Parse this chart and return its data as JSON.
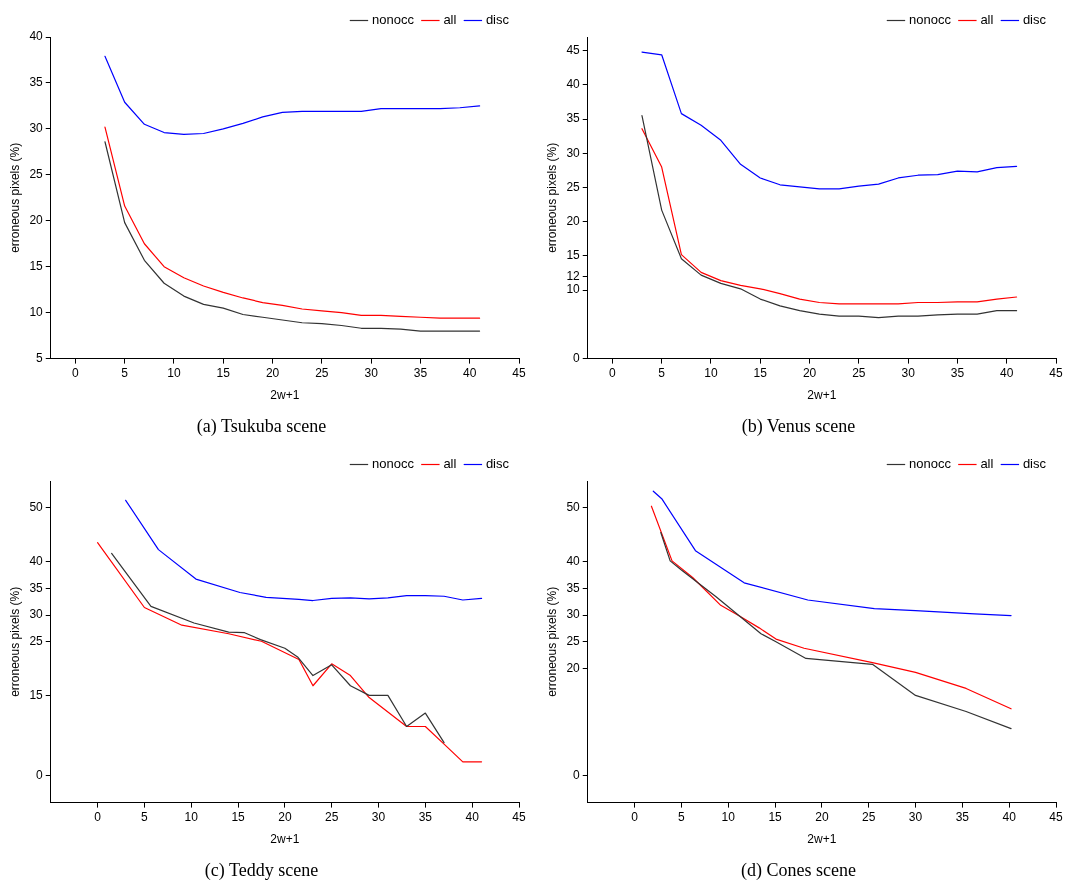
{
  "chart_data": [
    {
      "type": "line",
      "title": "(a) Tsukuba scene",
      "xlabel": "2w+1",
      "ylabel": "erroneous pixels (%)",
      "xlim": [
        -2.5,
        45
      ],
      "xticks": [
        0,
        5,
        10,
        15,
        20,
        25,
        30,
        35,
        40,
        45
      ],
      "ylim": [
        5,
        40
      ],
      "yticks": [
        5,
        10,
        15,
        20,
        25,
        30,
        35,
        40
      ],
      "legend": "top right",
      "grid": false,
      "marker": "none",
      "line_style": "solid",
      "series": [
        {
          "name": "nonocc",
          "color": "#333333",
          "x": [
            3,
            5,
            7,
            9,
            11,
            13,
            15,
            17,
            19,
            21,
            23,
            25,
            27,
            29,
            31,
            33,
            35,
            37,
            39,
            41
          ],
          "values": [
            28.6,
            19.8,
            15.7,
            13.2,
            11.8,
            10.9,
            10.5,
            9.8,
            9.5,
            9.2,
            8.9,
            8.8,
            8.6,
            8.3,
            8.3,
            8.2,
            8.0,
            8.0,
            8.0,
            8.0
          ]
        },
        {
          "name": "all",
          "color": "#ff0000",
          "x": [
            3,
            5,
            7,
            9,
            11,
            13,
            15,
            17,
            19,
            21,
            23,
            25,
            27,
            29,
            31,
            33,
            35,
            37,
            39,
            41
          ],
          "values": [
            30.2,
            21.6,
            17.5,
            15.0,
            13.8,
            12.9,
            12.2,
            11.6,
            11.1,
            10.8,
            10.4,
            10.2,
            10.0,
            9.7,
            9.7,
            9.6,
            9.5,
            9.4,
            9.4,
            9.4
          ]
        },
        {
          "name": "disc",
          "color": "#0000ff",
          "x": [
            3,
            5,
            7,
            9,
            11,
            13,
            15,
            17,
            19,
            21,
            23,
            25,
            27,
            29,
            31,
            33,
            35,
            37,
            39,
            41
          ],
          "values": [
            37.9,
            32.9,
            30.5,
            29.6,
            29.4,
            29.5,
            30.0,
            30.6,
            31.3,
            31.8,
            31.9,
            31.9,
            31.9,
            31.9,
            32.2,
            32.2,
            32.2,
            32.2,
            32.3,
            32.5
          ]
        }
      ]
    },
    {
      "type": "line",
      "title": "(b) Venus scene",
      "xlabel": "2w+1",
      "ylabel": "erroneous pixels (%)",
      "xlim": [
        -2.5,
        45
      ],
      "xticks": [
        0,
        5,
        10,
        15,
        20,
        25,
        30,
        35,
        40,
        45
      ],
      "ylim": [
        0,
        47
      ],
      "yticks": [
        0,
        10,
        12,
        15,
        20,
        25,
        30,
        35,
        40,
        45
      ],
      "legend": "top right",
      "grid": false,
      "marker": "none",
      "line_style": "solid",
      "series": [
        {
          "name": "nonocc",
          "color": "#333333",
          "x": [
            3,
            5,
            7,
            9,
            11,
            13,
            15,
            17,
            19,
            21,
            23,
            25,
            27,
            29,
            31,
            33,
            35,
            37,
            39,
            41
          ],
          "values": [
            35.5,
            21.7,
            14.6,
            12.2,
            11.0,
            10.2,
            8.7,
            7.7,
            7.0,
            6.5,
            6.2,
            6.2,
            6.0,
            6.2,
            6.2,
            6.4,
            6.5,
            6.5,
            7.0,
            7.0
          ]
        },
        {
          "name": "all",
          "color": "#ff0000",
          "x": [
            3,
            5,
            7,
            9,
            11,
            13,
            15,
            17,
            19,
            21,
            23,
            25,
            27,
            29,
            31,
            33,
            35,
            37,
            39,
            41
          ],
          "values": [
            33.6,
            28.0,
            15.2,
            12.6,
            11.4,
            10.7,
            10.2,
            9.5,
            8.7,
            8.2,
            8.0,
            8.0,
            8.0,
            8.0,
            8.2,
            8.2,
            8.3,
            8.3,
            8.7,
            9.0
          ]
        },
        {
          "name": "disc",
          "color": "#0000ff",
          "x": [
            3,
            5,
            7,
            9,
            11,
            13,
            15,
            17,
            19,
            21,
            23,
            25,
            27,
            29,
            31,
            33,
            35,
            37,
            39,
            41
          ],
          "values": [
            44.8,
            44.4,
            35.8,
            34.1,
            31.9,
            28.4,
            26.4,
            25.4,
            25.1,
            24.8,
            24.8,
            25.2,
            25.5,
            26.4,
            26.8,
            26.9,
            27.4,
            27.3,
            27.9,
            28.1
          ]
        }
      ]
    },
    {
      "type": "line",
      "title": "(c) Teddy scene",
      "xlabel": "2w+1",
      "ylabel": "erroneous pixels (%)",
      "xlim": [
        -5,
        45
      ],
      "xticks": [
        0,
        5,
        10,
        15,
        20,
        25,
        30,
        35,
        40,
        45
      ],
      "ylim": [
        -5,
        55
      ],
      "yticks": [
        0,
        15,
        25,
        30,
        35,
        40,
        50
      ],
      "legend": "top right",
      "grid": false,
      "marker": "none",
      "line_style": "solid",
      "series": [
        {
          "name": "nonocc",
          "color": "#333333",
          "x": [
            1.5,
            5.7,
            10.3,
            14,
            15.7,
            17.4,
            20,
            21.4,
            23,
            25,
            27,
            29,
            31,
            33,
            35,
            37
          ],
          "values": [
            41.5,
            31.6,
            28.5,
            26.8,
            26.7,
            25.4,
            23.8,
            22.1,
            18.7,
            20.7,
            16.8,
            15,
            15,
            9.2,
            11.7,
            6.2
          ]
        },
        {
          "name": "all",
          "color": "#ff0000",
          "x": [
            0,
            5,
            9,
            14,
            17.5,
            21.5,
            23,
            25,
            27,
            29,
            33,
            35,
            37,
            39,
            41
          ],
          "values": [
            43.5,
            31.4,
            28.1,
            26.5,
            25.1,
            21.7,
            16.8,
            20.9,
            18.7,
            14.6,
            9.2,
            9.2,
            5.9,
            2.6,
            2.6
          ]
        },
        {
          "name": "disc",
          "color": "#0000ff",
          "x": [
            3,
            6.5,
            10.5,
            15.2,
            18,
            21.5,
            23,
            25,
            27,
            29,
            31,
            33,
            35,
            37,
            39,
            41
          ],
          "values": [
            51.4,
            42.2,
            36.7,
            34.2,
            33.3,
            32.9,
            32.7,
            33.1,
            33.2,
            33.0,
            33.2,
            33.6,
            33.6,
            33.5,
            32.8,
            33.1
          ]
        }
      ]
    },
    {
      "type": "line",
      "title": "(d) Cones scene",
      "xlabel": "2w+1",
      "ylabel": "erroneous pixels (%)",
      "xlim": [
        -5,
        45
      ],
      "xticks": [
        0,
        5,
        10,
        15,
        20,
        25,
        30,
        35,
        40,
        45
      ],
      "ylim": [
        -5,
        55
      ],
      "yticks": [
        0,
        20,
        25,
        30,
        35,
        40,
        50
      ],
      "legend": "top right",
      "grid": false,
      "marker": "none",
      "line_style": "solid",
      "series": [
        {
          "name": "nonocc",
          "color": "#333333",
          "x": [
            2.8,
            3.8,
            5,
            8.7,
            11.2,
            13.5,
            15,
            18.3,
            25.4,
            30,
            35.4,
            40.2
          ],
          "values": [
            45.4,
            40.1,
            38.4,
            33.4,
            29.8,
            26.5,
            25.1,
            21.9,
            20.8,
            15,
            12,
            8.8
          ]
        },
        {
          "name": "all",
          "color": "#ff0000",
          "x": [
            1.8,
            4,
            6.2,
            9.2,
            11.2,
            13.3,
            15.1,
            18.1,
            25.4,
            30,
            35.4,
            40.2
          ],
          "values": [
            50.3,
            40.1,
            37.0,
            31.8,
            29.8,
            27.6,
            25.5,
            23.8,
            21.1,
            19.3,
            16.3,
            12.5
          ]
        },
        {
          "name": "disc",
          "color": "#0000ff",
          "x": [
            2,
            2.9,
            6.5,
            11.7,
            18.5,
            25.6,
            30,
            36.3,
            40.2
          ],
          "values": [
            53.1,
            51.7,
            42.0,
            36.0,
            32.8,
            31.2,
            30.8,
            30.2,
            29.9
          ]
        }
      ]
    }
  ]
}
